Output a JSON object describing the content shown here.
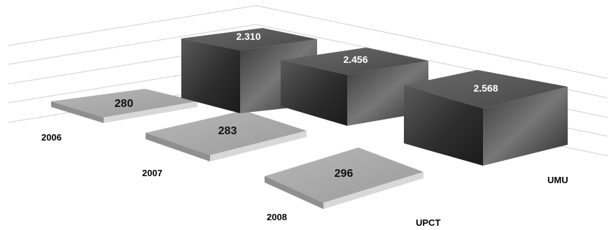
{
  "chart_data": {
    "type": "bar",
    "style": "3d",
    "categories": [
      "2006",
      "2007",
      "2008"
    ],
    "series": [
      {
        "name": "UMU",
        "values": [
          2310,
          2456,
          2568
        ],
        "labels": [
          "2.310",
          "2.456",
          "2.568"
        ],
        "color": "#4a4a4a"
      },
      {
        "name": "UPCT",
        "values": [
          280,
          283,
          296
        ],
        "labels": [
          "280",
          "283",
          "296"
        ],
        "color": "#a8a8a8"
      }
    ],
    "grid": true,
    "legend": "none"
  }
}
